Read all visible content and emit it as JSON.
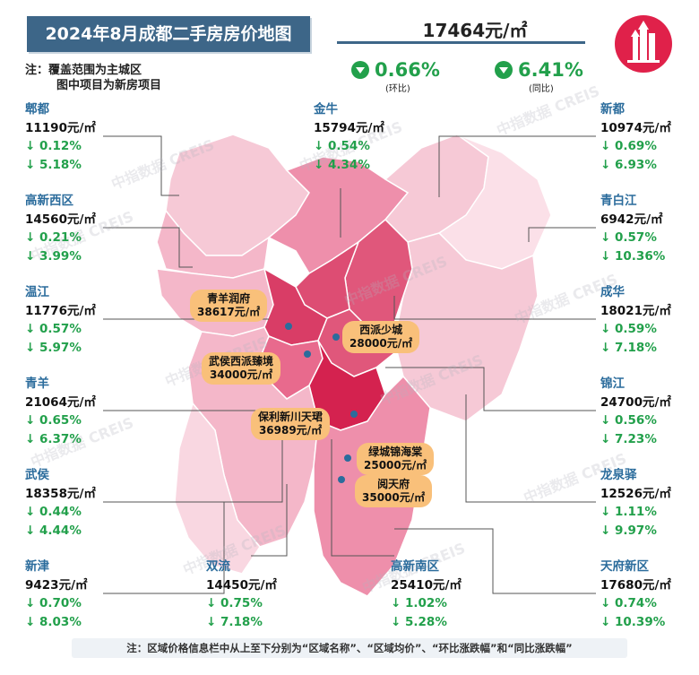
{
  "title": "2024年8月成都二手房房价地图",
  "avg_price": "17464元/㎡",
  "mom": {
    "value": "0.66%",
    "label": "(环比)"
  },
  "yoy": {
    "value": "6.41%",
    "label": "(同比)"
  },
  "note_line1": "注：覆盖范围为主城区",
  "note_line2": "图中项目为新房项目",
  "footer": "注：区域价格信息栏中从上至下分别为“区域名称”、“区域均价”、“环比涨跌幅”和“同比涨跌幅”",
  "watermark": "中指数据 CREIS",
  "colors": {
    "title_bg": "#3d6688",
    "green": "#22a04b",
    "region_name": "#2b6c9c",
    "project_bg": "#f9c07a",
    "logo": "#e0214a"
  },
  "regions": {
    "pidu": {
      "name": "郫都",
      "price": "11190元/㎡",
      "mom": "↓ 0.12%",
      "yoy": "↓ 5.18%"
    },
    "gaoxinxi": {
      "name": "高新西区",
      "price": "14560元/㎡",
      "mom": "↓ 0.21%",
      "yoy": "↓ 3.99%"
    },
    "wenjiang": {
      "name": "温江",
      "price": "11776元/㎡",
      "mom": "↓ 0.57%",
      "yoy": "↓ 5.97%"
    },
    "qingyang": {
      "name": "青羊",
      "price": "21064元/㎡",
      "mom": "↓ 0.65%",
      "yoy": "↓ 6.37%"
    },
    "wuhou": {
      "name": "武侯",
      "price": "18358元/㎡",
      "mom": "↓ 0.44%",
      "yoy": "↓ 4.44%"
    },
    "xinjin": {
      "name": "新津",
      "price": "9423元/㎡",
      "mom": "↓ 0.70%",
      "yoy": "↓ 8.03%"
    },
    "shuangliu": {
      "name": "双流",
      "price": "14450元/㎡",
      "mom": "↓ 0.75%",
      "yoy": "↓ 7.18%"
    },
    "gaoxinnan": {
      "name": "高新南区",
      "price": "25410元/㎡",
      "mom": "↓ 1.02%",
      "yoy": "↓ 5.28%"
    },
    "jinniu": {
      "name": "金牛",
      "price": "15794元/㎡",
      "mom": "↓ 0.54%",
      "yoy": "↓ 4.34%"
    },
    "xindu": {
      "name": "新都",
      "price": "10974元/㎡",
      "mom": "↓ 0.69%",
      "yoy": "↓ 6.93%"
    },
    "qingbaijiang": {
      "name": "青白江",
      "price": "6942元/㎡",
      "mom": "↓ 0.57%",
      "yoy": "↓ 10.36%"
    },
    "chenghua": {
      "name": "成华",
      "price": "18021元/㎡",
      "mom": "↓ 0.59%",
      "yoy": "↓ 7.18%"
    },
    "jinjiang": {
      "name": "锦江",
      "price": "24700元/㎡",
      "mom": "↓ 0.56%",
      "yoy": "↓ 7.23%"
    },
    "longquanyi": {
      "name": "龙泉驿",
      "price": "12526元/㎡",
      "mom": "↓ 1.11%",
      "yoy": "↓ 9.97%"
    },
    "tianfu": {
      "name": "天府新区",
      "price": "17680元/㎡",
      "mom": "↓ 0.74%",
      "yoy": "↓ 10.39%"
    }
  },
  "projects": {
    "qingyangrunfu": {
      "name": "青羊润府",
      "price": "38617元/㎡"
    },
    "xipaishaocheng": {
      "name": "西派少城",
      "price": "28000元/㎡"
    },
    "wuhouxipai": {
      "name": "武侯西派臻境",
      "price": "34000元/㎡"
    },
    "baolixinchuan": {
      "name": "保利新川天珺",
      "price": "36989元/㎡"
    },
    "lvchengjinhai": {
      "name": "绿城锦海棠",
      "price": "25000元/㎡"
    },
    "yuetianfu": {
      "name": "阅天府",
      "price": "35000元/㎡"
    }
  }
}
